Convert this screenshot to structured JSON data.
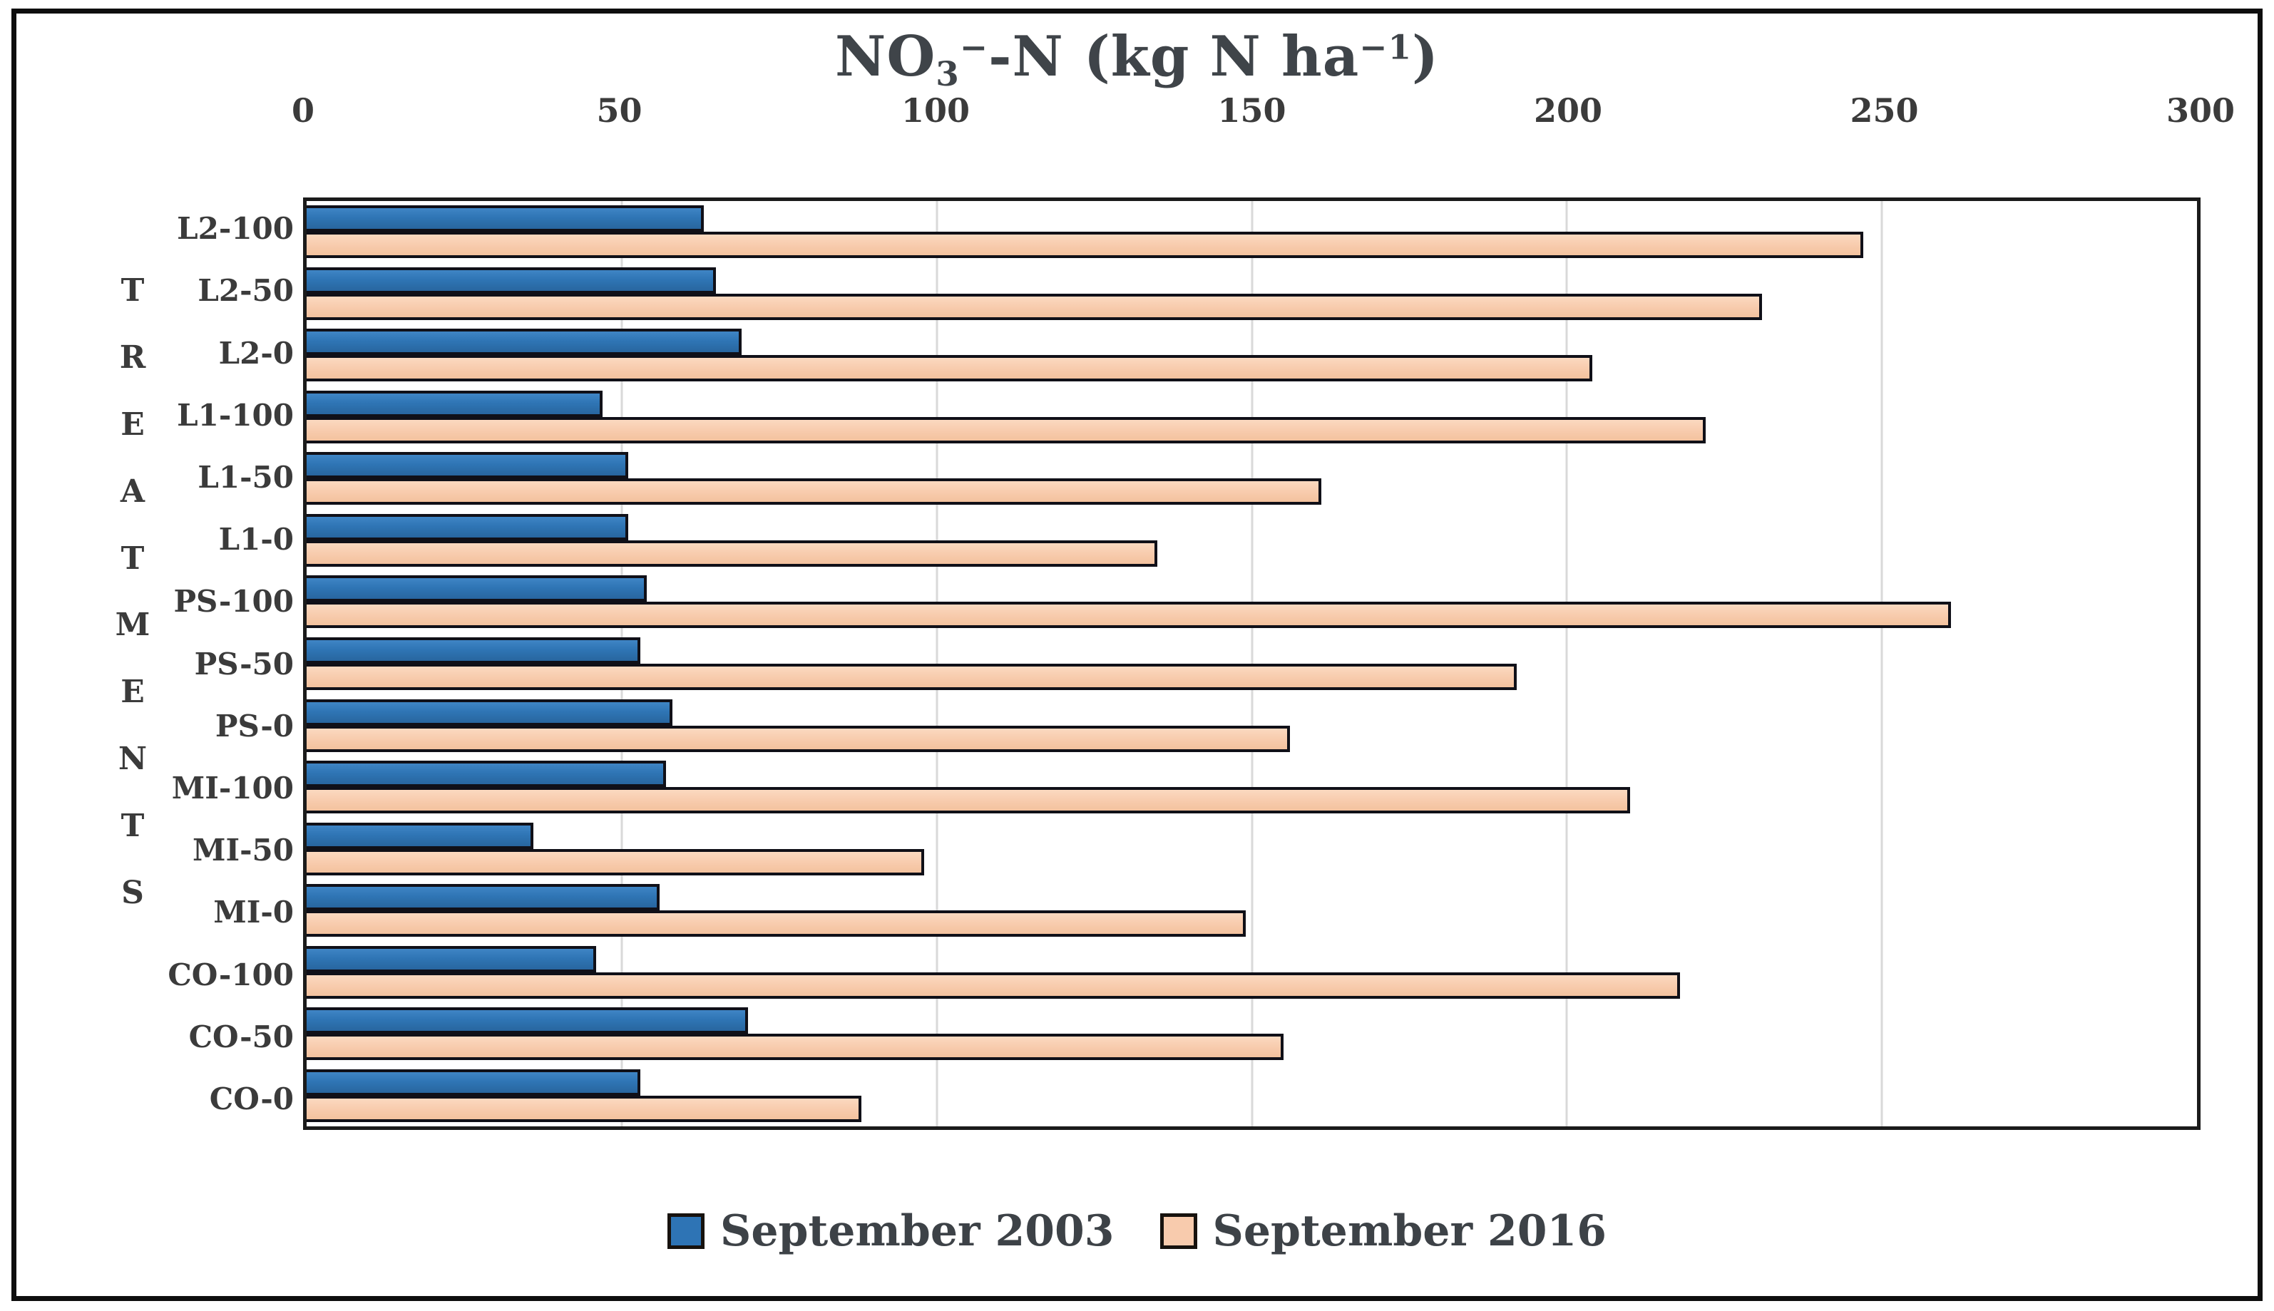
{
  "figure": {
    "title_plain": "NO₃⁻-N (kg N ha⁻¹)",
    "title_parts": {
      "pre": "NO",
      "sub": "3",
      "sup_minus": "−",
      "mid": "-N (kg N ha",
      "sup_exp": "−1",
      "close": ")"
    }
  },
  "y_axis_title_letters": [
    "T",
    "R",
    "E",
    "A",
    "T",
    "M",
    "E",
    "N",
    "T",
    "S"
  ],
  "colors": {
    "series_2003": "#2E74B5",
    "series_2016": "#F8CBAD",
    "bar_border": "#101018",
    "gridline": "#D9D9D9",
    "plot_border": "#1B1B1B",
    "text": "#3B3B3B",
    "figure_border": "#0E0E0E"
  },
  "chart_data": {
    "type": "bar",
    "orientation": "horizontal",
    "title": "NO₃⁻-N (kg N ha⁻¹)",
    "xlabel": "NO₃⁻-N (kg N ha⁻¹)",
    "ylabel": "TREATMENTS",
    "categories": [
      "L2-100",
      "L2-50",
      "L2-0",
      "L1-100",
      "L1-50",
      "L1-0",
      "PS-100",
      "PS-50",
      "PS-0",
      "MI-100",
      "MI-50",
      "MI-0",
      "CO-100",
      "CO-50",
      "CO-0"
    ],
    "series": [
      {
        "name": "September 2003",
        "color": "#2E74B5",
        "values": [
          63,
          65,
          69,
          47,
          51,
          51,
          54,
          53,
          58,
          57,
          36,
          56,
          46,
          70,
          53
        ]
      },
      {
        "name": "September 2016",
        "color": "#F8CBAD",
        "values": [
          247,
          231,
          204,
          222,
          161,
          135,
          261,
          192,
          156,
          210,
          98,
          149,
          218,
          155,
          88
        ]
      }
    ],
    "xlim": [
      0,
      300
    ],
    "x_ticks": [
      0,
      50,
      100,
      150,
      200,
      250,
      300
    ],
    "grid": "vertical-light-gray",
    "legend_position": "bottom-center",
    "bars_per_category_order_top_to_bottom": [
      "September 2003",
      "September 2016"
    ]
  }
}
